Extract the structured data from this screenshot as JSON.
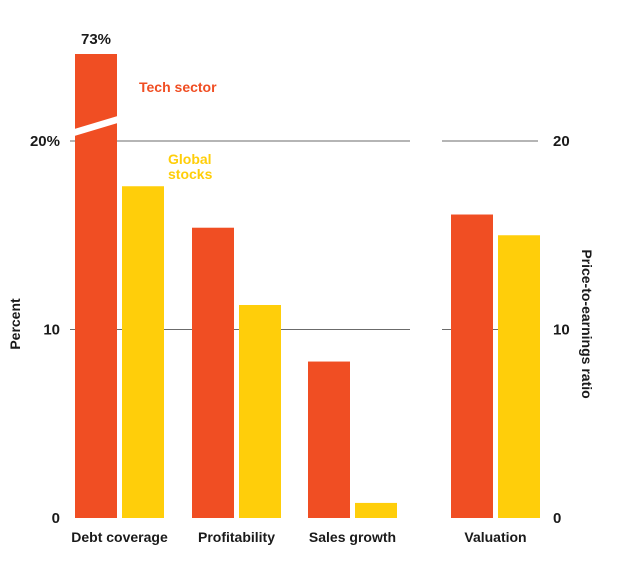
{
  "chart_data": {
    "type": "bar",
    "colors": {
      "tech": "#F04E23",
      "global": "#FFCE0A",
      "grid": "#6b6b6b"
    },
    "legend": [
      {
        "key": "tech",
        "lines": [
          "Tech sector"
        ]
      },
      {
        "key": "global",
        "lines": [
          "Global",
          "stocks"
        ]
      }
    ],
    "left_panel": {
      "ylabel": "Percent",
      "ylim": [
        0,
        20
      ],
      "yticks": [
        {
          "value": 0,
          "label": "0"
        },
        {
          "value": 10,
          "label": "10"
        },
        {
          "value": 20,
          "label": "20%"
        }
      ],
      "categories": [
        "Debt coverage",
        "Profitability",
        "Sales growth"
      ],
      "series": [
        {
          "key": "tech",
          "values": [
            73,
            15.4,
            8.3
          ]
        },
        {
          "key": "global",
          "values": [
            17.6,
            11.3,
            0.8
          ]
        }
      ],
      "broken_bar": {
        "series": "tech",
        "category_index": 0,
        "label": "73%"
      }
    },
    "right_panel": {
      "ylabel": "Price-to-earnings ratio",
      "ylim": [
        0,
        20
      ],
      "yticks": [
        {
          "value": 0,
          "label": "0"
        },
        {
          "value": 10,
          "label": "10"
        },
        {
          "value": 20,
          "label": "20"
        }
      ],
      "categories": [
        "Valuation"
      ],
      "series": [
        {
          "key": "tech",
          "values": [
            16.1
          ]
        },
        {
          "key": "global",
          "values": [
            15.0
          ]
        }
      ]
    }
  }
}
